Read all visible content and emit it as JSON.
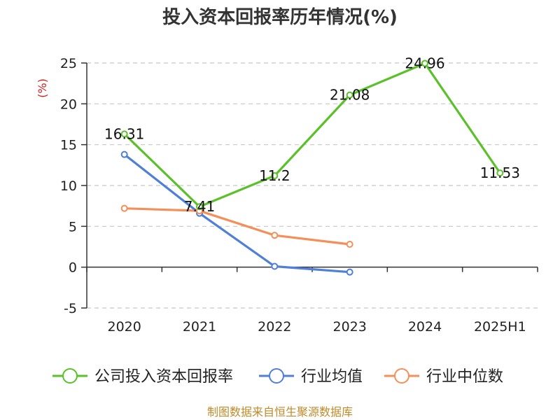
{
  "chart_data": {
    "type": "line",
    "title": "投入资本回报率历年情况(%)",
    "ylabel": "(%)",
    "categories": [
      "2020",
      "2021",
      "2022",
      "2023",
      "2024",
      "2025H1"
    ],
    "ylim": [
      -5,
      25
    ],
    "yticks": [
      -5,
      0,
      5,
      10,
      15,
      20,
      25
    ],
    "grid": true,
    "legend_position": "bottom",
    "series": [
      {
        "name": "公司投入资本回报率",
        "color": "#5bc12a",
        "values": [
          16.31,
          7.41,
          11.2,
          21.08,
          24.96,
          11.53
        ],
        "labels": [
          "16.31",
          "7.41",
          "11.2",
          "21.08",
          "24.96",
          "11.53"
        ]
      },
      {
        "name": "行业均值",
        "color": "#4f7fd8",
        "values": [
          13.8,
          6.6,
          0.1,
          -0.6,
          null,
          null
        ]
      },
      {
        "name": "行业中位数",
        "color": "#f58f5a",
        "values": [
          7.2,
          6.9,
          3.9,
          2.8,
          null,
          null
        ]
      }
    ]
  },
  "footer": {
    "source": "制图数据来自恒生聚源数据库"
  }
}
